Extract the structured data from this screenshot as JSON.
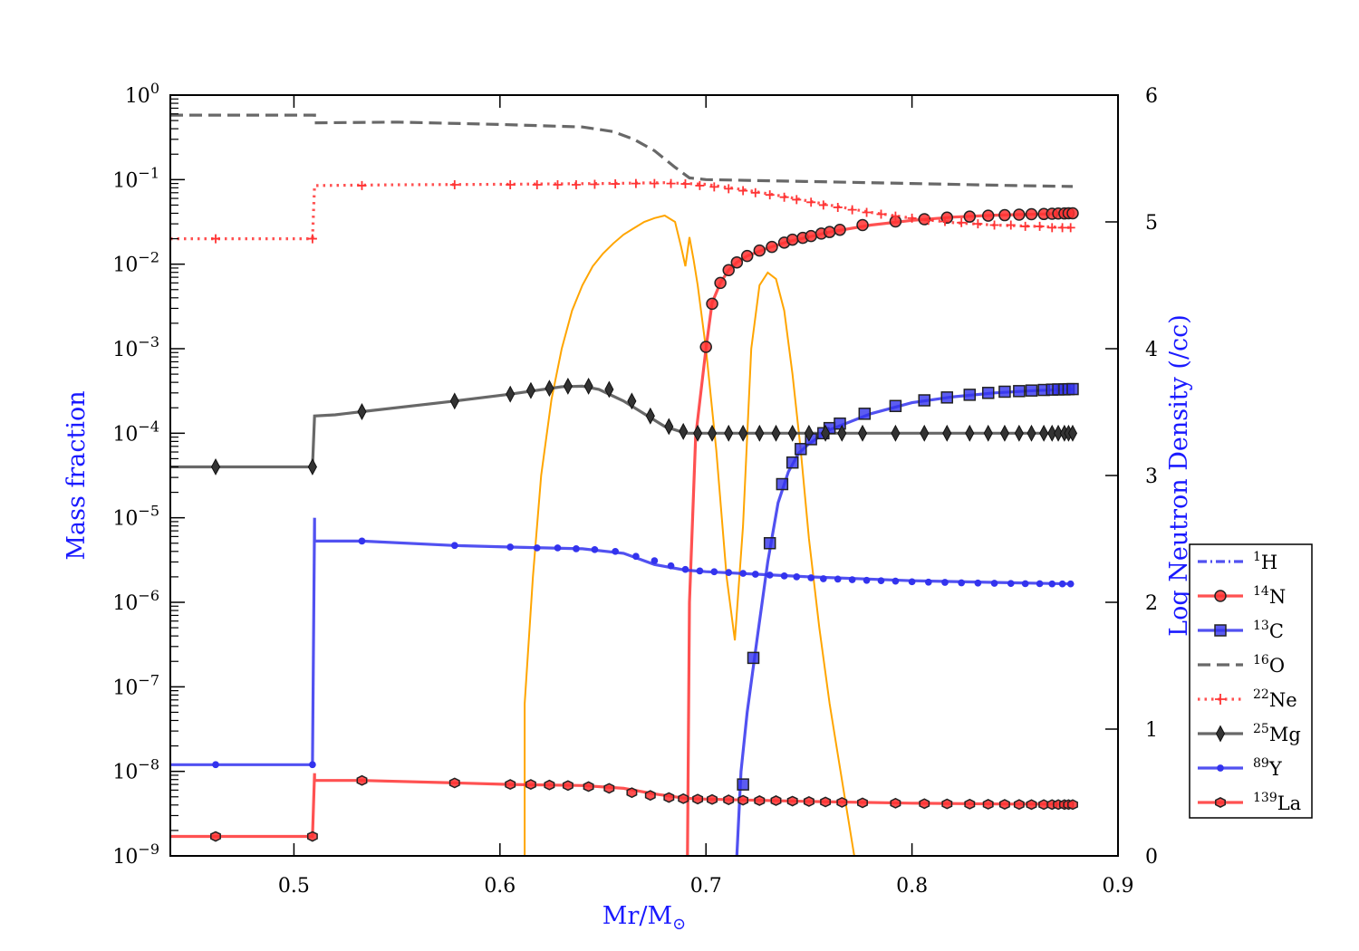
{
  "chart_data": {
    "type": "line",
    "xlabel": "Mr/M",
    "xlabel_sub": "⊙",
    "ylabel": "Mass fraction",
    "y2label": "Log Neutron Density (/cc)",
    "xlim": [
      0.44,
      0.9
    ],
    "ylim": [
      1e-09,
      1
    ],
    "yscale": "log",
    "y2lim": [
      0,
      6
    ],
    "x_ticks": [
      0.5,
      0.6,
      0.7,
      0.8,
      0.9
    ],
    "x_tick_labels": [
      "0.5",
      "0.6",
      "0.7",
      "0.8",
      "0.9"
    ],
    "y_tick_exponents": [
      "0",
      "−1",
      "−2",
      "−3",
      "−4",
      "−5",
      "−6",
      "−7",
      "−8",
      "−9"
    ],
    "y_tick_base": "10",
    "y2_ticks": [
      0,
      1,
      2,
      3,
      4,
      5,
      6
    ],
    "y2_tick_labels": [
      "0",
      "1",
      "2",
      "3",
      "4",
      "5",
      "6"
    ],
    "grid": false,
    "legend_position": "right",
    "series": [
      {
        "name": "1H",
        "iso_mass": "1",
        "iso_symbol": "H",
        "color": "#3333ee",
        "style": "dashdot",
        "marker": "none",
        "x": [],
        "y": []
      },
      {
        "name": "14N",
        "iso_mass": "14",
        "iso_symbol": "N",
        "color": "#ff3333",
        "style": "solid",
        "marker": "circle",
        "x": [
          0.691,
          0.692,
          0.695,
          0.7,
          0.703,
          0.707,
          0.711,
          0.715,
          0.72,
          0.73,
          0.74,
          0.75,
          0.76,
          0.78,
          0.8,
          0.82,
          0.84,
          0.86,
          0.878
        ],
        "y": [
          1e-09,
          1e-06,
          9e-05,
          0.001,
          0.0035,
          0.006,
          0.0085,
          0.0105,
          0.0125,
          0.0155,
          0.0185,
          0.021,
          0.024,
          0.029,
          0.033,
          0.036,
          0.038,
          0.039,
          0.04
        ],
        "marker_x": [
          0.7,
          0.703,
          0.707,
          0.711,
          0.715,
          0.72,
          0.726,
          0.732,
          0.738,
          0.742,
          0.747,
          0.751,
          0.756,
          0.76,
          0.765,
          0.776,
          0.792,
          0.806,
          0.817,
          0.828,
          0.837,
          0.845,
          0.852,
          0.858,
          0.864,
          0.868,
          0.871,
          0.874,
          0.876,
          0.878
        ],
        "marker_y": [
          0.00105,
          0.0034,
          0.006,
          0.0085,
          0.0105,
          0.0125,
          0.0145,
          0.016,
          0.018,
          0.0195,
          0.0205,
          0.0215,
          0.023,
          0.024,
          0.0255,
          0.029,
          0.032,
          0.034,
          0.0355,
          0.0365,
          0.0375,
          0.038,
          0.0385,
          0.039,
          0.0392,
          0.0395,
          0.0397,
          0.0398,
          0.04,
          0.04
        ]
      },
      {
        "name": "13C",
        "iso_mass": "13",
        "iso_symbol": "C",
        "color": "#3333ee",
        "style": "solid",
        "marker": "square",
        "x": [
          0.715,
          0.717,
          0.72,
          0.725,
          0.73,
          0.735,
          0.74,
          0.745,
          0.75,
          0.76,
          0.78,
          0.8,
          0.82,
          0.84,
          0.86,
          0.878
        ],
        "y": [
          1e-09,
          1e-08,
          5e-08,
          4e-07,
          3e-06,
          1.5e-05,
          3.5e-05,
          5.8e-05,
          7.5e-05,
          0.00011,
          0.00017,
          0.00023,
          0.00027,
          0.0003,
          0.00032,
          0.00033
        ],
        "marker_x": [
          0.718,
          0.723,
          0.731,
          0.737,
          0.742,
          0.746,
          0.751,
          0.757,
          0.76,
          0.765,
          0.777,
          0.792,
          0.806,
          0.817,
          0.828,
          0.837,
          0.845,
          0.852,
          0.858,
          0.864,
          0.868,
          0.871,
          0.874,
          0.876,
          0.878
        ],
        "marker_y": [
          7e-09,
          2.2e-07,
          5e-06,
          2.5e-05,
          4.5e-05,
          6.5e-05,
          8.5e-05,
          0.0001,
          0.000115,
          0.00013,
          0.00017,
          0.00021,
          0.000245,
          0.000265,
          0.000285,
          0.0003,
          0.00031,
          0.000315,
          0.00032,
          0.000325,
          0.000328,
          0.00033,
          0.00033,
          0.000332,
          0.000333
        ]
      },
      {
        "name": "16O",
        "iso_mass": "16",
        "iso_symbol": "O",
        "color": "#4d4d4d",
        "style": "dashed",
        "marker": "none",
        "x": [
          0.44,
          0.506,
          0.51,
          0.51,
          0.55,
          0.6,
          0.64,
          0.655,
          0.665,
          0.675,
          0.685,
          0.692,
          0.7,
          0.75,
          0.8,
          0.85,
          0.878
        ],
        "y": [
          0.58,
          0.58,
          0.58,
          0.47,
          0.48,
          0.45,
          0.42,
          0.37,
          0.3,
          0.22,
          0.14,
          0.105,
          0.1,
          0.095,
          0.09,
          0.085,
          0.083
        ],
        "marker_x": [],
        "marker_y": []
      },
      {
        "name": "22Ne",
        "iso_mass": "22",
        "iso_symbol": "Ne",
        "color": "#ff3333",
        "style": "dotted",
        "marker": "plus",
        "x": [
          0.44,
          0.509,
          0.51,
          0.55,
          0.6,
          0.65,
          0.68,
          0.7,
          0.72,
          0.74,
          0.76,
          0.78,
          0.8,
          0.82,
          0.84,
          0.86,
          0.878
        ],
        "y": [
          0.02,
          0.02,
          0.085,
          0.087,
          0.088,
          0.09,
          0.092,
          0.088,
          0.075,
          0.062,
          0.05,
          0.041,
          0.035,
          0.031,
          0.029,
          0.028,
          0.027
        ],
        "marker_x": [
          0.462,
          0.509,
          0.533,
          0.578,
          0.605,
          0.618,
          0.628,
          0.637,
          0.646,
          0.656,
          0.666,
          0.675,
          0.683,
          0.69,
          0.697,
          0.704,
          0.711,
          0.718,
          0.724,
          0.731,
          0.738,
          0.744,
          0.751,
          0.757,
          0.764,
          0.771,
          0.778,
          0.785,
          0.792,
          0.8,
          0.808,
          0.816,
          0.824,
          0.832,
          0.84,
          0.848,
          0.855,
          0.862,
          0.868,
          0.873,
          0.877
        ],
        "marker_y": [
          0.02,
          0.02,
          0.085,
          0.087,
          0.087,
          0.087,
          0.087,
          0.087,
          0.088,
          0.089,
          0.09,
          0.09,
          0.09,
          0.089,
          0.085,
          0.082,
          0.078,
          0.074,
          0.07,
          0.066,
          0.062,
          0.058,
          0.054,
          0.05,
          0.047,
          0.044,
          0.041,
          0.039,
          0.037,
          0.035,
          0.033,
          0.032,
          0.031,
          0.03,
          0.029,
          0.029,
          0.028,
          0.028,
          0.027,
          0.027,
          0.027
        ]
      },
      {
        "name": "25Mg",
        "iso_mass": "25",
        "iso_symbol": "Mg",
        "color": "#4d4d4d",
        "style": "solid",
        "marker": "diamond",
        "x": [
          0.44,
          0.509,
          0.51,
          0.52,
          0.533,
          0.578,
          0.605,
          0.63,
          0.64,
          0.648,
          0.66,
          0.68,
          0.69,
          0.7,
          0.8,
          0.878
        ],
        "y": [
          4e-05,
          4e-05,
          0.00016,
          0.000165,
          0.00018,
          0.00024,
          0.00029,
          0.000355,
          0.00036,
          0.00033,
          0.00024,
          0.00012,
          0.0001,
          0.0001,
          0.0001,
          0.0001
        ],
        "marker_x": [
          0.462,
          0.509,
          0.533,
          0.578,
          0.605,
          0.615,
          0.624,
          0.633,
          0.643,
          0.653,
          0.664,
          0.673,
          0.682,
          0.689,
          0.696,
          0.703,
          0.711,
          0.718,
          0.726,
          0.734,
          0.742,
          0.75,
          0.758,
          0.766,
          0.776,
          0.792,
          0.806,
          0.817,
          0.828,
          0.837,
          0.845,
          0.852,
          0.858,
          0.864,
          0.868,
          0.871,
          0.874,
          0.876,
          0.878
        ],
        "marker_y": [
          4e-05,
          4e-05,
          0.00018,
          0.00024,
          0.00029,
          0.00032,
          0.00034,
          0.00036,
          0.00036,
          0.00033,
          0.00024,
          0.00016,
          0.00012,
          0.000105,
          0.0001,
          0.0001,
          0.0001,
          0.0001,
          0.0001,
          0.0001,
          0.0001,
          0.0001,
          0.0001,
          0.0001,
          0.0001,
          0.0001,
          0.0001,
          0.0001,
          0.0001,
          0.0001,
          0.0001,
          0.0001,
          0.0001,
          0.0001,
          0.0001,
          0.0001,
          0.0001,
          0.0001,
          0.0001
        ]
      },
      {
        "name": "89Y",
        "iso_mass": "89",
        "iso_symbol": "Y",
        "color": "#3333ee",
        "style": "solid",
        "marker": "dot",
        "x": [
          0.44,
          0.509,
          0.51,
          0.51,
          0.533,
          0.578,
          0.605,
          0.64,
          0.66,
          0.675,
          0.69,
          0.7,
          0.75,
          0.8,
          0.85,
          0.878
        ],
        "y": [
          1.2e-08,
          1.2e-08,
          1e-05,
          5.3e-06,
          5.3e-06,
          4.7e-06,
          4.5e-06,
          4.3e-06,
          3.8e-06,
          2.8e-06,
          2.4e-06,
          2.3e-06,
          2e-06,
          1.8e-06,
          1.7e-06,
          1.65e-06
        ],
        "marker_x": [
          0.462,
          0.509,
          0.533,
          0.578,
          0.605,
          0.618,
          0.628,
          0.637,
          0.646,
          0.656,
          0.666,
          0.675,
          0.683,
          0.69,
          0.697,
          0.704,
          0.711,
          0.718,
          0.724,
          0.731,
          0.738,
          0.744,
          0.751,
          0.757,
          0.764,
          0.771,
          0.778,
          0.785,
          0.792,
          0.8,
          0.808,
          0.816,
          0.824,
          0.832,
          0.84,
          0.848,
          0.855,
          0.862,
          0.868,
          0.873,
          0.877
        ],
        "marker_y": [
          1.2e-08,
          1.2e-08,
          5.3e-06,
          4.7e-06,
          4.5e-06,
          4.4e-06,
          4.4e-06,
          4.3e-06,
          4.2e-06,
          4e-06,
          3.5e-06,
          3.1e-06,
          2.7e-06,
          2.45e-06,
          2.35e-06,
          2.3e-06,
          2.25e-06,
          2.2e-06,
          2.15e-06,
          2.1e-06,
          2.05e-06,
          2e-06,
          1.95e-06,
          1.9e-06,
          1.88e-06,
          1.85e-06,
          1.82e-06,
          1.8e-06,
          1.78e-06,
          1.75e-06,
          1.73e-06,
          1.72e-06,
          1.7e-06,
          1.69e-06,
          1.68e-06,
          1.67e-06,
          1.66e-06,
          1.66e-06,
          1.65e-06,
          1.65e-06,
          1.65e-06
        ]
      },
      {
        "name": "139La",
        "iso_mass": "139",
        "iso_symbol": "La",
        "color": "#ff3333",
        "style": "solid",
        "marker": "hexagon",
        "x": [
          0.44,
          0.509,
          0.51,
          0.51,
          0.533,
          0.578,
          0.605,
          0.64,
          0.66,
          0.675,
          0.69,
          0.7,
          0.75,
          0.8,
          0.85,
          0.878
        ],
        "y": [
          1.7e-09,
          1.7e-09,
          9.5e-09,
          7.8e-09,
          7.8e-09,
          7.3e-09,
          7e-09,
          6.8e-09,
          6.3e-09,
          5.4e-09,
          4.8e-09,
          4.7e-09,
          4.4e-09,
          4.2e-09,
          4.1e-09,
          4.1e-09
        ],
        "marker_x": [
          0.462,
          0.509,
          0.533,
          0.578,
          0.605,
          0.615,
          0.624,
          0.633,
          0.643,
          0.653,
          0.664,
          0.673,
          0.682,
          0.689,
          0.696,
          0.703,
          0.711,
          0.718,
          0.726,
          0.734,
          0.742,
          0.75,
          0.758,
          0.766,
          0.776,
          0.792,
          0.806,
          0.817,
          0.828,
          0.837,
          0.845,
          0.852,
          0.858,
          0.864,
          0.868,
          0.871,
          0.874,
          0.876,
          0.878
        ],
        "marker_y": [
          1.7e-09,
          1.7e-09,
          7.8e-09,
          7.3e-09,
          7e-09,
          7e-09,
          6.9e-09,
          6.8e-09,
          6.6e-09,
          6.3e-09,
          5.6e-09,
          5.2e-09,
          4.9e-09,
          4.75e-09,
          4.7e-09,
          4.65e-09,
          4.6e-09,
          4.55e-09,
          4.5e-09,
          4.5e-09,
          4.45e-09,
          4.4e-09,
          4.35e-09,
          4.3e-09,
          4.25e-09,
          4.2e-09,
          4.15e-09,
          4.12e-09,
          4.1e-09,
          4.08e-09,
          4.07e-09,
          4.06e-09,
          4.05e-09,
          4.05e-09,
          4.05e-09,
          4.05e-09,
          4.05e-09,
          4.05e-09,
          4.05e-09
        ]
      }
    ],
    "neutron_density": {
      "axis": "right",
      "color": "#ffa500",
      "style": "solid",
      "x": [
        0.612,
        0.612,
        0.616,
        0.62,
        0.625,
        0.63,
        0.635,
        0.64,
        0.645,
        0.65,
        0.655,
        0.66,
        0.665,
        0.67,
        0.675,
        0.68,
        0.685,
        0.688,
        0.69,
        0.692,
        0.694,
        0.696,
        0.7,
        0.705,
        0.71,
        0.714,
        0.718,
        0.722,
        0.726,
        0.73,
        0.734,
        0.738,
        0.742,
        0.746,
        0.75,
        0.755,
        0.76,
        0.765,
        0.768,
        0.772
      ],
      "y": [
        0,
        1.2,
        2.2,
        3.0,
        3.6,
        4.0,
        4.3,
        4.5,
        4.65,
        4.75,
        4.83,
        4.9,
        4.95,
        5.0,
        5.03,
        5.05,
        5.0,
        4.8,
        4.65,
        4.88,
        4.7,
        4.5,
        4.0,
        3.2,
        2.2,
        1.7,
        2.6,
        4.0,
        4.5,
        4.6,
        4.55,
        4.3,
        3.8,
        3.2,
        2.5,
        1.8,
        1.2,
        0.7,
        0.4,
        0
      ]
    }
  },
  "legend": {
    "entries": [
      "1H",
      "14N",
      "13C",
      "16O",
      "22Ne",
      "25Mg",
      "89Y",
      "139La"
    ]
  }
}
